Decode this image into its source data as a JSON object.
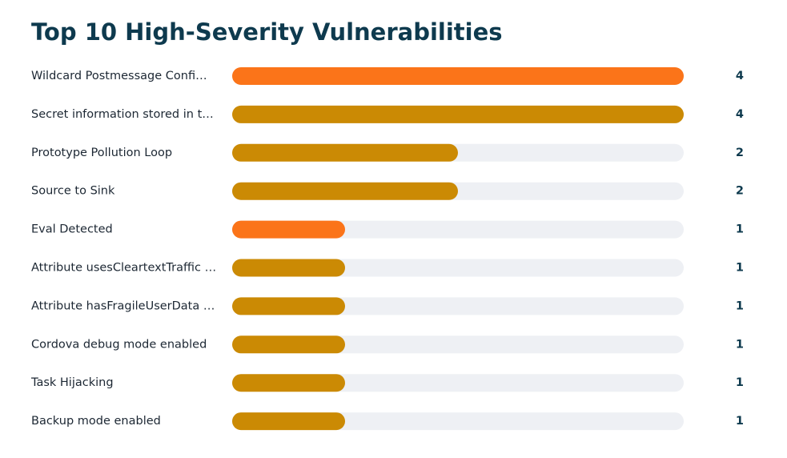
{
  "chart_data": {
    "type": "bar",
    "orientation": "horizontal",
    "title": "Top 10 High-Severity Vulnerabilities",
    "categories": [
      "Wildcard Postmessage Confi…",
      "Secret information stored in t…",
      "Prototype Pollution Loop",
      "Source to Sink",
      "Eval Detected",
      "Attribute usesCleartextTraffic …",
      "Attribute hasFragileUserData …",
      "Cordova debug mode enabled",
      "Task Hijacking",
      "Backup mode enabled"
    ],
    "values": [
      4,
      4,
      2,
      2,
      1,
      1,
      1,
      1,
      1,
      1
    ],
    "colors": [
      "#fb7419",
      "#cb8a04",
      "#cb8a04",
      "#cb8a04",
      "#fb7419",
      "#cb8a04",
      "#cb8a04",
      "#cb8a04",
      "#cb8a04",
      "#cb8a04"
    ],
    "xlim": [
      0,
      4
    ]
  }
}
